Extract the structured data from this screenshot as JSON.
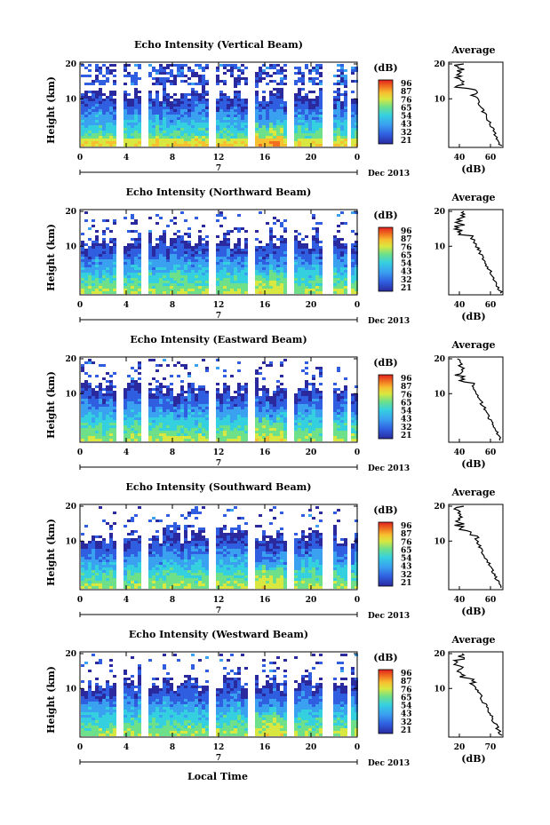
{
  "chart_data": [
    {
      "type": "heatmap",
      "title": "Echo Intensity (Vertical Beam)",
      "ylabel": "Height (km)",
      "xticks": [
        "0",
        "4",
        "8",
        "12",
        "16",
        "20",
        "0"
      ],
      "yticks": [
        "20",
        "10"
      ],
      "date_axis": {
        "day": "7",
        "label": "Dec 2013"
      },
      "colorbar": {
        "unit": "(dB)",
        "ticks": [
          "96",
          "87",
          "76",
          "65",
          "54",
          "43",
          "32",
          "21"
        ]
      },
      "average_profile": {
        "title": "Average",
        "xlabel": "(dB)",
        "xticks": [
          "40",
          "60"
        ],
        "yticks": [
          "20",
          "10"
        ]
      }
    },
    {
      "type": "heatmap",
      "title": "Echo Intensity (Northward Beam)",
      "ylabel": "Height (km)",
      "xticks": [
        "0",
        "4",
        "8",
        "12",
        "16",
        "20",
        "0"
      ],
      "yticks": [
        "20",
        "10"
      ],
      "date_axis": {
        "day": "7",
        "label": "Dec 2013"
      },
      "colorbar": {
        "unit": "(dB)",
        "ticks": [
          "96",
          "87",
          "76",
          "65",
          "54",
          "43",
          "32",
          "21"
        ]
      },
      "average_profile": {
        "title": "Average",
        "xlabel": "(dB)",
        "xticks": [
          "40",
          "60"
        ],
        "yticks": [
          "20",
          "10"
        ]
      }
    },
    {
      "type": "heatmap",
      "title": "Echo Intensity (Eastward Beam)",
      "ylabel": "Height (km)",
      "xticks": [
        "0",
        "4",
        "8",
        "12",
        "16",
        "20",
        "0"
      ],
      "yticks": [
        "20",
        "10"
      ],
      "date_axis": {
        "day": "7",
        "label": "Dec 2013"
      },
      "colorbar": {
        "unit": "(dB)",
        "ticks": [
          "96",
          "87",
          "76",
          "65",
          "54",
          "43",
          "32",
          "21"
        ]
      },
      "average_profile": {
        "title": "Average",
        "xlabel": "(dB)",
        "xticks": [
          "40",
          "60"
        ],
        "yticks": [
          "20",
          "10"
        ]
      }
    },
    {
      "type": "heatmap",
      "title": "Echo Intensity (Southward Beam)",
      "ylabel": "Height (km)",
      "xticks": [
        "0",
        "4",
        "8",
        "12",
        "16",
        "20",
        "0"
      ],
      "yticks": [
        "20",
        "10"
      ],
      "date_axis": {
        "day": "7",
        "label": "Dec 2013"
      },
      "colorbar": {
        "unit": "(dB)",
        "ticks": [
          "96",
          "87",
          "76",
          "65",
          "54",
          "43",
          "32",
          "21"
        ]
      },
      "average_profile": {
        "title": "Average",
        "xlabel": "(dB)",
        "xticks": [
          "40",
          "60"
        ],
        "yticks": [
          "20",
          "10"
        ]
      }
    },
    {
      "type": "heatmap",
      "title": "Echo Intensity (Westward Beam)",
      "ylabel": "Height (km)",
      "xticks": [
        "0",
        "4",
        "8",
        "12",
        "16",
        "20",
        "0"
      ],
      "yticks": [
        "20",
        "10"
      ],
      "date_axis": {
        "day": "7",
        "label": "Dec 2013"
      },
      "colorbar": {
        "unit": "(dB)",
        "ticks": [
          "96",
          "87",
          "76",
          "65",
          "54",
          "43",
          "32",
          "21"
        ]
      },
      "average_profile": {
        "title": "Average",
        "xlabel": "(dB)",
        "xticks": [
          "20",
          "70"
        ],
        "yticks": [
          "20",
          "10"
        ]
      }
    }
  ],
  "footer": {
    "xlabel": "Local Time"
  },
  "colormap": [
    "#2a2a9e",
    "#2f5fe0",
    "#3aa0f0",
    "#35d0e0",
    "#6ee08a",
    "#d8e840",
    "#f7c030",
    "#f07020",
    "#e02020"
  ]
}
